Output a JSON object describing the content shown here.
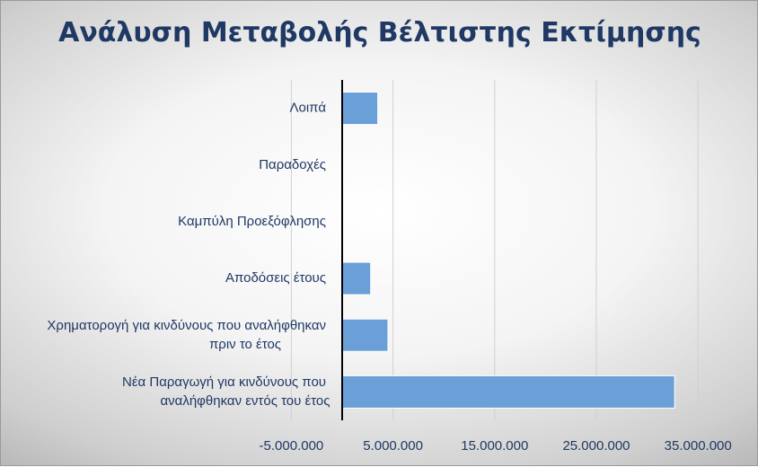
{
  "chart_data": {
    "type": "bar",
    "orientation": "horizontal",
    "title": "Ανάλυση Μεταβολής Βέλτιστης Εκτίμησης",
    "categories": [
      [
        "Λοιπά"
      ],
      [
        "Παραδοχές"
      ],
      [
        "Καμπύλη Προεξόφλησης"
      ],
      [
        "Αποδόσεις έτους"
      ],
      [
        "Χρηματορογή για κινδύνους που αναλήφθηκαν",
        "πριν το έτος"
      ],
      [
        "Νέα Παραγωγή για κινδύνους που",
        "αναλήφθηκαν εντός του έτος"
      ]
    ],
    "values": [
      3500000,
      100000,
      0,
      2800000,
      4500000,
      32700000
    ],
    "xlim": [
      -5000000,
      35000000
    ],
    "ticks": [
      -5000000,
      5000000,
      15000000,
      25000000,
      35000000
    ],
    "tick_labels": [
      "-5.000.000",
      "5.000.000",
      "15.000.000",
      "25.000.000",
      "35.000.000"
    ],
    "xlabel": "",
    "ylabel": "",
    "grid": true,
    "colors": {
      "bar": "#6a9fd8",
      "bar_edge": "#ffffff",
      "title": "#1f3864",
      "text": "#1f3864",
      "grid": "#d0d0d0",
      "axis": "#000000"
    }
  }
}
